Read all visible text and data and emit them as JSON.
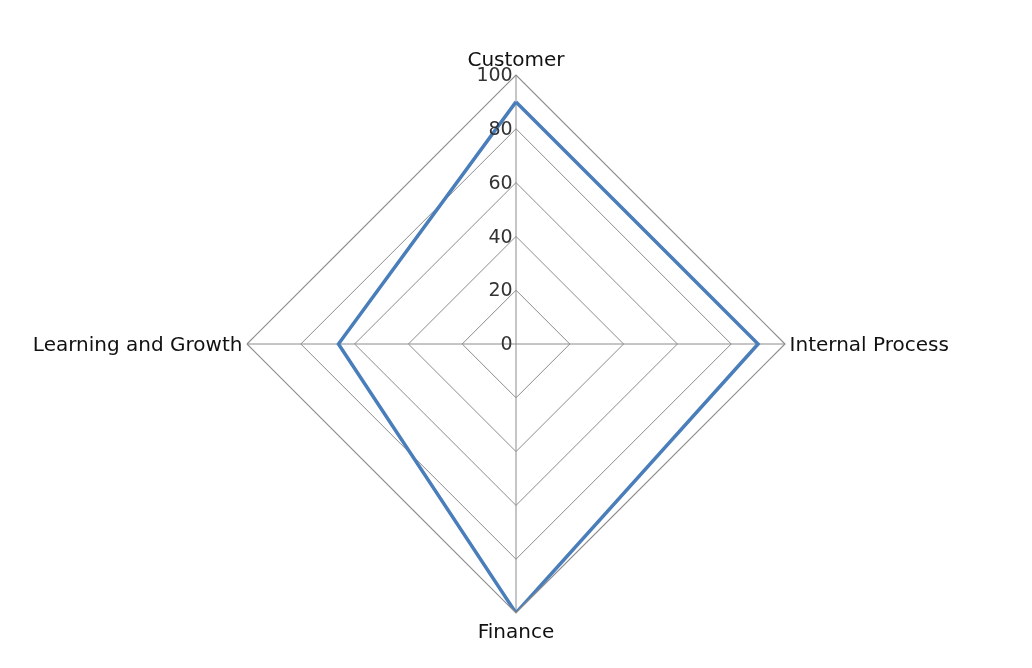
{
  "chart_data": {
    "type": "radar",
    "categories": [
      "Customer",
      "Internal Process",
      "Finance",
      "Learning and Growth"
    ],
    "series": [
      {
        "color": "#4a7ebb",
        "values": [
          90,
          90,
          100,
          66
        ]
      }
    ],
    "ylim": [
      0,
      100
    ],
    "yticks": [
      0,
      20,
      40,
      60,
      80,
      100
    ],
    "grid": true,
    "marker": "none",
    "line_style": "solid"
  }
}
